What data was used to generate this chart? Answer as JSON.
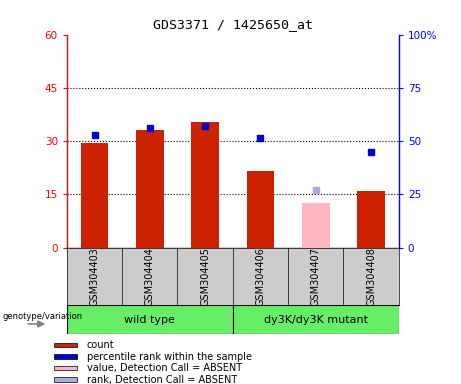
{
  "title": "GDS3371 / 1425650_at",
  "samples": [
    "GSM304403",
    "GSM304404",
    "GSM304405",
    "GSM304406",
    "GSM304407",
    "GSM304408"
  ],
  "group_labels": [
    "wild type",
    "dy3K/dy3K mutant"
  ],
  "count_values": [
    29.5,
    33.0,
    35.5,
    21.5,
    null,
    16.0
  ],
  "count_absent_values": [
    null,
    null,
    null,
    null,
    12.5,
    null
  ],
  "rank_values": [
    53.0,
    56.0,
    57.0,
    51.5,
    null,
    45.0
  ],
  "rank_absent_values": [
    null,
    null,
    null,
    null,
    27.0,
    null
  ],
  "left_ylim": [
    0,
    60
  ],
  "right_ylim": [
    0,
    100
  ],
  "left_yticks": [
    0,
    15,
    30,
    45,
    60
  ],
  "right_yticks": [
    0,
    25,
    50,
    75,
    100
  ],
  "right_yticklabels": [
    "0",
    "25",
    "50",
    "75",
    "100%"
  ],
  "bar_color": "#CC2200",
  "bar_absent_color": "#FFB6C1",
  "dot_color": "#0000CC",
  "dot_absent_color": "#AAAADD",
  "sample_bg_color": "#CCCCCC",
  "group_wt_color": "#66EE66",
  "group_mut_color": "#66EE66",
  "legend_items": [
    "count",
    "percentile rank within the sample",
    "value, Detection Call = ABSENT",
    "rank, Detection Call = ABSENT"
  ],
  "legend_colors": [
    "#CC2200",
    "#0000CC",
    "#FFB6C1",
    "#AAAADD"
  ],
  "gridline_ticks": [
    15,
    30,
    45
  ],
  "bar_width": 0.5
}
